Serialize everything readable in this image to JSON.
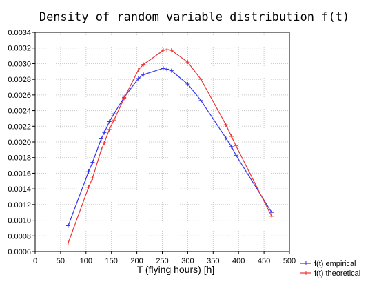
{
  "chart_data": {
    "type": "line",
    "title": "Density of random variable distribution f(t)",
    "xlabel": "T (flying hours) [h]",
    "ylabel": "",
    "xlim": [
      0,
      500
    ],
    "ylim": [
      0.0006,
      0.0034
    ],
    "xticks": [
      "0",
      "50",
      "100",
      "150",
      "200",
      "250",
      "300",
      "350",
      "400",
      "450",
      "500"
    ],
    "yticks": [
      "0.0006",
      "0.0008",
      "0.0010",
      "0.0012",
      "0.0014",
      "0.0016",
      "0.0018",
      "0.0020",
      "0.0022",
      "0.0024",
      "0.0026",
      "0.0028",
      "0.0030",
      "0.0032",
      "0.0034"
    ],
    "grid": true,
    "legend": "bottom-right",
    "series": [
      {
        "name": "f(t) empirical",
        "color": "#3333ee",
        "points": [
          [
            65,
            0.00093
          ],
          [
            105,
            0.00162
          ],
          [
            113,
            0.00174
          ],
          [
            130,
            0.00204
          ],
          [
            136,
            0.00212
          ],
          [
            146,
            0.00226
          ],
          [
            155,
            0.00236
          ],
          [
            175,
            0.00257
          ],
          [
            203,
            0.00281
          ],
          [
            213,
            0.00286
          ],
          [
            252,
            0.00294
          ],
          [
            259,
            0.00293
          ],
          [
            268,
            0.00291
          ],
          [
            300,
            0.00274
          ],
          [
            326,
            0.00253
          ],
          [
            375,
            0.00205
          ],
          [
            386,
            0.00194
          ],
          [
            395,
            0.00183
          ],
          [
            465,
            0.0011
          ]
        ]
      },
      {
        "name": "f(t) theoretical",
        "color": "#ee3333",
        "points": [
          [
            65,
            0.00071
          ],
          [
            105,
            0.00142
          ],
          [
            113,
            0.00154
          ],
          [
            130,
            0.0019
          ],
          [
            136,
            0.00199
          ],
          [
            146,
            0.00216
          ],
          [
            155,
            0.00228
          ],
          [
            175,
            0.00256
          ],
          [
            203,
            0.00292
          ],
          [
            213,
            0.00299
          ],
          [
            252,
            0.00317
          ],
          [
            259,
            0.00318
          ],
          [
            268,
            0.00317
          ],
          [
            300,
            0.00302
          ],
          [
            326,
            0.0028
          ],
          [
            375,
            0.00222
          ],
          [
            386,
            0.00207
          ],
          [
            395,
            0.00195
          ],
          [
            465,
            0.00105
          ]
        ]
      }
    ]
  }
}
